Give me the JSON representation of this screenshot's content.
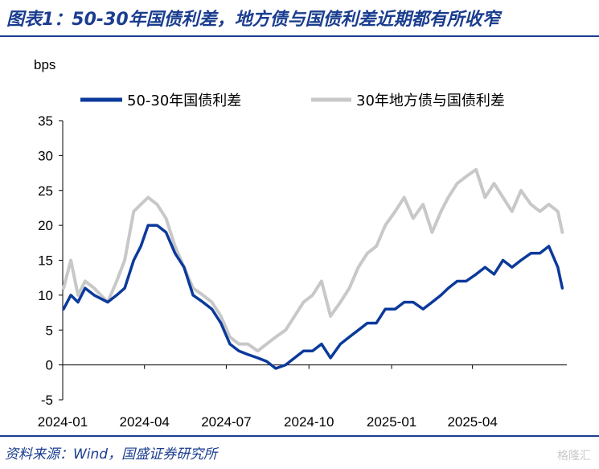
{
  "header": {
    "title": "图表1：50-30年国债利差，地方债与国债利差近期都有所收窄"
  },
  "footer": {
    "source": "资料来源：Wind，国盛证券研究所",
    "watermark": "格隆汇"
  },
  "chart_data": {
    "type": "line",
    "title": "",
    "ylabel": "bps",
    "xlabel": "",
    "ylim": [
      -5,
      35
    ],
    "yticks": [
      -5,
      0,
      5,
      10,
      15,
      20,
      25,
      30,
      35
    ],
    "xticks": [
      "2024-01",
      "2024-04",
      "2024-07",
      "2024-10",
      "2025-01",
      "2025-04"
    ],
    "xrange": [
      "2024-01-01",
      "2025-07-15"
    ],
    "grid": false,
    "legend_position": "top",
    "series": [
      {
        "name": "50-30年国债利差",
        "color": "#0b3a9b",
        "x": [
          "2024-01-02",
          "2024-01-10",
          "2024-01-18",
          "2024-01-26",
          "2024-02-05",
          "2024-02-20",
          "2024-03-01",
          "2024-03-10",
          "2024-03-20",
          "2024-03-28",
          "2024-04-05",
          "2024-04-15",
          "2024-04-25",
          "2024-05-05",
          "2024-05-15",
          "2024-05-25",
          "2024-06-05",
          "2024-06-15",
          "2024-06-25",
          "2024-07-05",
          "2024-07-15",
          "2024-07-25",
          "2024-08-05",
          "2024-08-15",
          "2024-08-25",
          "2024-09-05",
          "2024-09-15",
          "2024-09-25",
          "2024-10-05",
          "2024-10-15",
          "2024-10-25",
          "2024-11-05",
          "2024-11-15",
          "2024-11-25",
          "2024-12-05",
          "2024-12-15",
          "2024-12-25",
          "2025-01-05",
          "2025-01-15",
          "2025-01-25",
          "2025-02-05",
          "2025-02-15",
          "2025-02-25",
          "2025-03-05",
          "2025-03-15",
          "2025-03-25",
          "2025-04-05",
          "2025-04-15",
          "2025-04-25",
          "2025-05-05",
          "2025-05-15",
          "2025-05-25",
          "2025-06-05",
          "2025-06-15",
          "2025-06-25",
          "2025-07-05",
          "2025-07-10"
        ],
        "values": [
          8,
          10,
          9,
          11,
          10,
          9,
          10,
          11,
          15,
          17,
          20,
          20,
          19,
          16,
          14,
          10,
          9,
          8,
          6,
          3,
          2,
          1.5,
          1,
          0.5,
          -0.5,
          0,
          1,
          2,
          2,
          3,
          1,
          3,
          4,
          5,
          6,
          6,
          8,
          8,
          9,
          9,
          8,
          9,
          10,
          11,
          12,
          12,
          13,
          14,
          13,
          15,
          14,
          15,
          16,
          16,
          17,
          14,
          11
        ]
      },
      {
        "name": "30年地方债与国债利差",
        "color": "#c8c8c8",
        "x": [
          "2024-01-02",
          "2024-01-10",
          "2024-01-18",
          "2024-01-26",
          "2024-02-05",
          "2024-02-20",
          "2024-03-01",
          "2024-03-10",
          "2024-03-20",
          "2024-03-28",
          "2024-04-05",
          "2024-04-15",
          "2024-04-25",
          "2024-05-05",
          "2024-05-15",
          "2024-05-25",
          "2024-06-05",
          "2024-06-15",
          "2024-06-25",
          "2024-07-05",
          "2024-07-15",
          "2024-07-25",
          "2024-08-05",
          "2024-08-15",
          "2024-08-25",
          "2024-09-05",
          "2024-09-15",
          "2024-09-25",
          "2024-10-05",
          "2024-10-15",
          "2024-10-25",
          "2024-11-05",
          "2024-11-15",
          "2024-11-25",
          "2024-12-05",
          "2024-12-15",
          "2024-12-25",
          "2025-01-05",
          "2025-01-15",
          "2025-01-25",
          "2025-02-05",
          "2025-02-15",
          "2025-02-25",
          "2025-03-05",
          "2025-03-15",
          "2025-03-25",
          "2025-04-05",
          "2025-04-15",
          "2025-04-25",
          "2025-05-05",
          "2025-05-15",
          "2025-05-25",
          "2025-06-05",
          "2025-06-15",
          "2025-06-25",
          "2025-07-05",
          "2025-07-10"
        ],
        "values": [
          11,
          15,
          10,
          12,
          11,
          9,
          12,
          15,
          22,
          23,
          24,
          23,
          21,
          17,
          14,
          11,
          10,
          9,
          7,
          4,
          3,
          3,
          2,
          3,
          4,
          5,
          7,
          9,
          10,
          12,
          7,
          9,
          11,
          14,
          16,
          17,
          20,
          22,
          24,
          21,
          23,
          19,
          22,
          24,
          26,
          27,
          28,
          24,
          26,
          24,
          22,
          25,
          23,
          22,
          23,
          22,
          19
        ]
      }
    ]
  }
}
